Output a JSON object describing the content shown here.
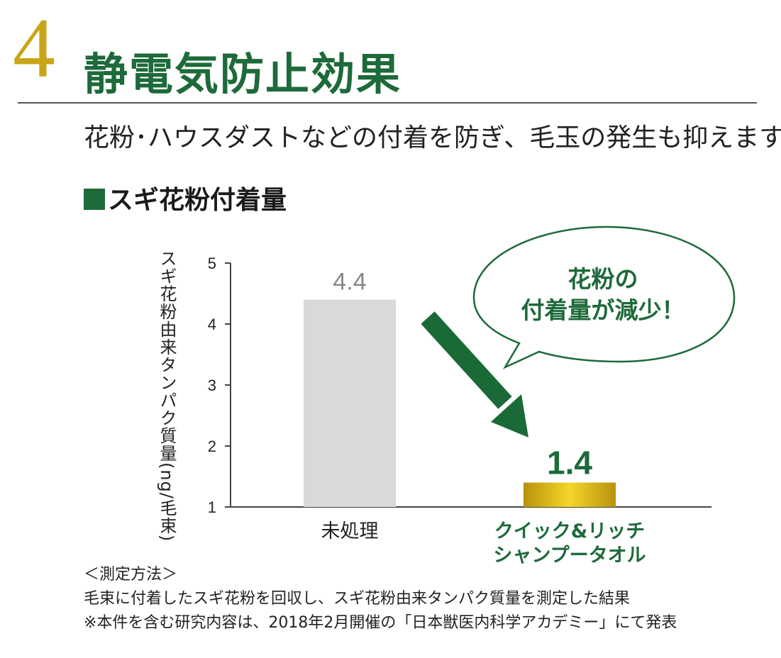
{
  "heading": {
    "number": "4",
    "title": "静電気防止効果",
    "subtitle": "花粉･ハウスダストなどの付着を防ぎ、毛玉の発生も抑えます。"
  },
  "chart_title": "スギ花粉付着量",
  "chart_data": {
    "type": "bar",
    "title": "スギ花粉付着量",
    "ylabel": "スギ花粉由来タンパク質量(ng/毛束)",
    "xlabel": "",
    "ylim": [
      1,
      5
    ],
    "yticks": [
      "1",
      "2",
      "3",
      "4",
      "5"
    ],
    "categories": [
      {
        "line1": "未処理",
        "line2": ""
      },
      {
        "line1": "クイック&リッチ",
        "line2": "シャンプータオル"
      }
    ],
    "values": [
      4.4,
      1.4
    ],
    "value_labels": [
      "4.4",
      "1.4"
    ],
    "colors": [
      "#d9d9d9",
      "#d7b31c"
    ],
    "label_colors": [
      "#888888",
      "#1d6a3a"
    ],
    "category_label_colors": [
      "#222222",
      "#1d6a3a"
    ],
    "grid": false
  },
  "callout": {
    "line1": "花粉の",
    "line2": "付着量が減少！"
  },
  "method": {
    "heading": "＜測定方法＞",
    "line1": "毛束に付着したスギ花粉を回収し、スギ花粉由来タンパク質量を測定した結果",
    "line2": "※本件を含む研究内容は、2018年2月開催の「日本獣医内科学アカデミー」にて発表"
  }
}
